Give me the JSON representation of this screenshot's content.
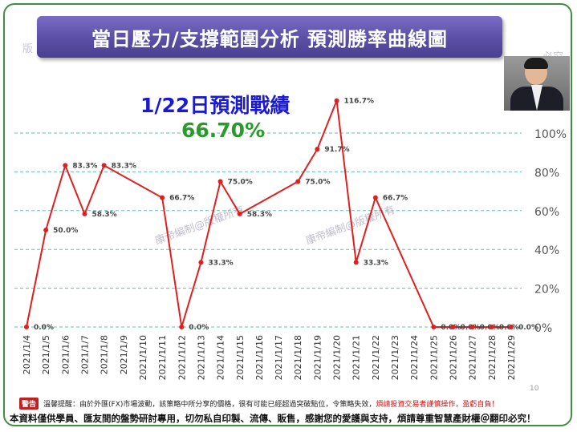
{
  "title": "當日壓力/支撐範圍分析 預測勝率曲線圖",
  "result": {
    "heading": "1/22日預測戰績",
    "value": "66.70%"
  },
  "watermark": "康帝編制@版權所有",
  "corner_watermarks": {
    "left": "版",
    "right": "必究"
  },
  "page_number": "10",
  "footer": {
    "badge": "警告",
    "warning": "溫馨提醒：由於外匯(FX)市場波動，該策略中所分享的價格，很有可能已經超過突破點位，令策略失效，",
    "warning_red": "煩請投資交易者謹慎操作，盈虧自負！",
    "notice": "本資料僅供學員、匯友間的盤勢研討專用，切勿私自印製、流傳、販售，感謝您的愛護與支持，煩請尊重智慧產財權＠翻印必究！"
  },
  "colors": {
    "line": "#e02020",
    "axis_label": "#555555",
    "tick_label": "#333333",
    "title_banner": "#5b4ea6",
    "result_heading": "#1a1ad6",
    "result_value": "#2a9a2a",
    "gridline": "#3fb0a0"
  },
  "chart_data": {
    "type": "line",
    "categories": [
      "2021/1/4",
      "2021/1/5",
      "2021/1/6",
      "2021/1/7",
      "2021/1/8",
      "2021/1/9",
      "2021/1/10",
      "2021/1/11",
      "2021/1/12",
      "2021/1/13",
      "2021/1/14",
      "2021/1/15",
      "2021/1/16",
      "2021/1/17",
      "2021/1/18",
      "2021/1/19",
      "2021/1/20",
      "2021/1/21",
      "2021/1/22",
      "2021/1/23",
      "2021/1/24",
      "2021/1/25",
      "2021/1/26",
      "2021/1/27",
      "2021/1/28",
      "2021/1/29"
    ],
    "points": [
      {
        "x": "2021/1/4",
        "y": 0.0,
        "label": "0.0%"
      },
      {
        "x": "2021/1/5",
        "y": 50.0,
        "label": "50.0%"
      },
      {
        "x": "2021/1/6",
        "y": 83.3,
        "label": "83.3%"
      },
      {
        "x": "2021/1/7",
        "y": 58.3,
        "label": "58.3%"
      },
      {
        "x": "2021/1/8",
        "y": 83.3,
        "label": "83.3%"
      },
      {
        "x": "2021/1/11",
        "y": 66.7,
        "label": "66.7%"
      },
      {
        "x": "2021/1/12",
        "y": 0.0,
        "label": "0.0%"
      },
      {
        "x": "2021/1/13",
        "y": 33.3,
        "label": "33.3%"
      },
      {
        "x": "2021/1/14",
        "y": 75.0,
        "label": "75.0%"
      },
      {
        "x": "2021/1/15",
        "y": 58.3,
        "label": "58.3%"
      },
      {
        "x": "2021/1/18",
        "y": 75.0,
        "label": "75.0%"
      },
      {
        "x": "2021/1/19",
        "y": 91.7,
        "label": "91.7%"
      },
      {
        "x": "2021/1/20",
        "y": 116.7,
        "label": "116.7%"
      },
      {
        "x": "2021/1/21",
        "y": 33.3,
        "label": "33.3%"
      },
      {
        "x": "2021/1/22",
        "y": 66.7,
        "label": "66.7%"
      },
      {
        "x": "2021/1/25",
        "y": 0.0,
        "label": "0.0%"
      },
      {
        "x": "2021/1/26",
        "y": 0.0,
        "label": "0.0%"
      },
      {
        "x": "2021/1/27",
        "y": 0.0,
        "label": "0.0%"
      },
      {
        "x": "2021/1/28",
        "y": 0.0,
        "label": "0.0%"
      },
      {
        "x": "2021/1/29",
        "y": 0.0,
        "label": "0.0%"
      }
    ],
    "y_ticks": [
      {
        "value": 0,
        "label": "0%"
      },
      {
        "value": 20,
        "label": "20%"
      },
      {
        "value": 40,
        "label": "40%"
      },
      {
        "value": 60,
        "label": "60%"
      },
      {
        "value": 80,
        "label": "80%"
      },
      {
        "value": 100,
        "label": "100%"
      }
    ],
    "ylim": [
      0,
      120
    ],
    "y_axis_position": "right",
    "grid": "horizontal dashed",
    "legend": "none"
  }
}
